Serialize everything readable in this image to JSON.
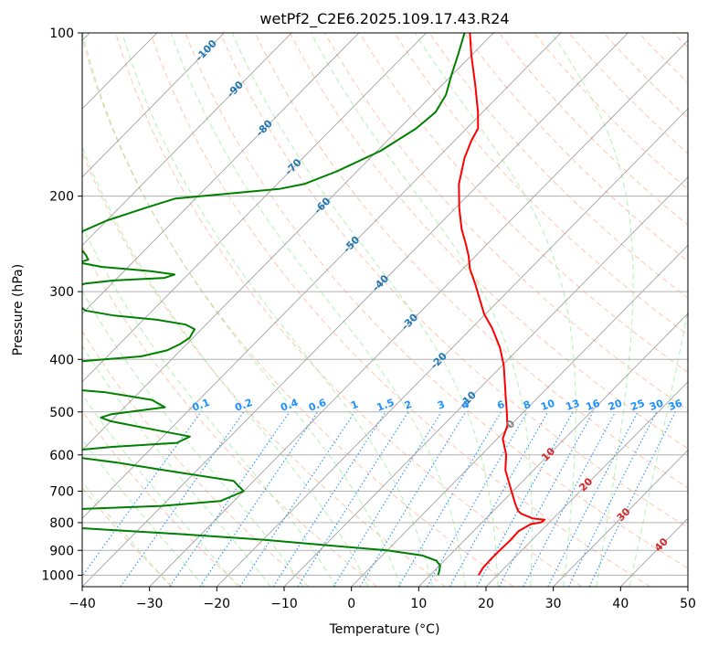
{
  "chart_data": {
    "type": "line",
    "title": "wetPf2_C2E6.2025.109.17.43.R24",
    "xlabel": "Temperature (°C)",
    "ylabel": "Pressure (hPa)",
    "xlim": [
      -40,
      50
    ],
    "ylim": [
      1050,
      100
    ],
    "y_scale": "log",
    "skew": "skew-T log-p",
    "grid": true,
    "x_ticks": [
      "−40",
      "−30",
      "−20",
      "−10",
      "0",
      "10",
      "20",
      "30",
      "40",
      "50"
    ],
    "y_ticks": [
      {
        "p": 100,
        "label": "100"
      },
      {
        "p": 200,
        "label": "200"
      },
      {
        "p": 300,
        "label": "300"
      },
      {
        "p": 400,
        "label": "400"
      },
      {
        "p": 500,
        "label": "500"
      },
      {
        "p": 600,
        "label": "600"
      },
      {
        "p": 700,
        "label": "700"
      },
      {
        "p": 800,
        "label": "800"
      },
      {
        "p": 900,
        "label": "900"
      },
      {
        "p": 1000,
        "label": "1000"
      }
    ],
    "colors": {
      "temperature": "#ff0000",
      "dewpoint": "#008000",
      "isotherm": "#808080",
      "dry_adiabat": "#ffa07a",
      "moist_adiabat": "#90ee90",
      "mixing_ratio": "#1e90ff",
      "isotherm_labels": "#1f77b4",
      "warm_labels": "#d62728",
      "zero_label": "#808080"
    },
    "series": [
      {
        "key": "temperature",
        "points": [
          [
            1000,
            17.2
          ],
          [
            970,
            16.8
          ],
          [
            940,
            16.7
          ],
          [
            900,
            16.7
          ],
          [
            860,
            16.8
          ],
          [
            830,
            16.7
          ],
          [
            805,
            17.5
          ],
          [
            800,
            18.6
          ],
          [
            798,
            18.8
          ],
          [
            790,
            18.9
          ],
          [
            786,
            17.0
          ],
          [
            770,
            14.5
          ],
          [
            760,
            13.6
          ],
          [
            740,
            12.3
          ],
          [
            700,
            9.8
          ],
          [
            640,
            5.8
          ],
          [
            600,
            3.7
          ],
          [
            560,
            0.8
          ],
          [
            530,
            -0.4
          ],
          [
            500,
            -2.5
          ],
          [
            470,
            -4.8
          ],
          [
            440,
            -7.2
          ],
          [
            410,
            -9.8
          ],
          [
            380,
            -13.0
          ],
          [
            350,
            -17.0
          ],
          [
            330,
            -20.2
          ],
          [
            310,
            -23.0
          ],
          [
            290,
            -26.0
          ],
          [
            272,
            -29.0
          ],
          [
            258,
            -31.0
          ],
          [
            245,
            -33.2
          ],
          [
            230,
            -36.0
          ],
          [
            210,
            -39.5
          ],
          [
            190,
            -43.0
          ],
          [
            170,
            -46.0
          ],
          [
            158,
            -47.5
          ],
          [
            150,
            -48.3
          ],
          [
            140,
            -50.7
          ],
          [
            125,
            -55.0
          ],
          [
            110,
            -60.0
          ],
          [
            100,
            -63.5
          ]
        ]
      },
      {
        "key": "dewpoint",
        "points": [
          [
            1000,
            11.2
          ],
          [
            980,
            10.7
          ],
          [
            960,
            10.1
          ],
          [
            940,
            8.8
          ],
          [
            920,
            6.0
          ],
          [
            900,
            0.0
          ],
          [
            880,
            -10.0
          ],
          [
            860,
            -20.0
          ],
          [
            840,
            -33.0
          ],
          [
            820,
            -48.0
          ],
          [
            810,
            -60.0
          ],
          [
            800,
            -70.0
          ],
          [
            790,
            -77.0
          ],
          [
            770,
            -67.0
          ],
          [
            757,
            -54.0
          ],
          [
            745,
            -40.0
          ],
          [
            730,
            -32.0
          ],
          [
            700,
            -30.0
          ],
          [
            670,
            -33.0
          ],
          [
            640,
            -45.0
          ],
          [
            620,
            -53.0
          ],
          [
            600,
            -63.0
          ],
          [
            590,
            -62.0
          ],
          [
            580,
            -56.0
          ],
          [
            570,
            -47.0
          ],
          [
            555,
            -46.0
          ],
          [
            535,
            -54.0
          ],
          [
            520,
            -60.0
          ],
          [
            512,
            -62.0
          ],
          [
            505,
            -61.0
          ],
          [
            490,
            -54.0
          ],
          [
            475,
            -57.0
          ],
          [
            460,
            -65.0
          ],
          [
            445,
            -80.0
          ],
          [
            440,
            -90.0
          ],
          [
            435,
            -95.0
          ],
          [
            420,
            -90.0
          ],
          [
            410,
            -80.0
          ],
          [
            400,
            -70.0
          ],
          [
            395,
            -65.0
          ],
          [
            385,
            -62.0
          ],
          [
            375,
            -61.0
          ],
          [
            365,
            -60.5
          ],
          [
            352,
            -61.0
          ],
          [
            345,
            -63.0
          ],
          [
            338,
            -68.0
          ],
          [
            332,
            -75.0
          ],
          [
            325,
            -80.0
          ],
          [
            312,
            -83.0
          ],
          [
            303,
            -85.0
          ],
          [
            296,
            -85.5
          ],
          [
            290,
            -84.0
          ],
          [
            286,
            -80.0
          ],
          [
            283,
            -73.0
          ],
          [
            279,
            -72.0
          ],
          [
            275,
            -76.0
          ],
          [
            270,
            -84.0
          ],
          [
            265,
            -88.0
          ],
          [
            262,
            -87.0
          ],
          [
            257,
            -88.0
          ],
          [
            245,
            -91.0
          ],
          [
            232,
            -92.0
          ],
          [
            222,
            -90.0
          ],
          [
            210,
            -86.0
          ],
          [
            202,
            -83.0
          ],
          [
            198,
            -76.0
          ],
          [
            194,
            -69.0
          ],
          [
            190,
            -66.0
          ],
          [
            180,
            -63.0
          ],
          [
            165,
            -59.5
          ],
          [
            150,
            -57.5
          ],
          [
            140,
            -57.0
          ],
          [
            130,
            -58.0
          ],
          [
            120,
            -60.0
          ],
          [
            110,
            -62.0
          ],
          [
            100,
            -64.3
          ]
        ]
      }
    ],
    "isotherm_labels": [
      "-100",
      "-90",
      "-80",
      "-70",
      "-60",
      "-50",
      "-40",
      "-30",
      "-20",
      "-10",
      "0",
      "10",
      "20",
      "30",
      "40"
    ],
    "mixing_ratio_labels": [
      "0.1",
      "0.2",
      "0.4",
      "0.6",
      "1",
      "1.5",
      "2",
      "3",
      "4",
      "6",
      "8",
      "10",
      "13",
      "16",
      "20",
      "25",
      "30",
      "36"
    ]
  }
}
